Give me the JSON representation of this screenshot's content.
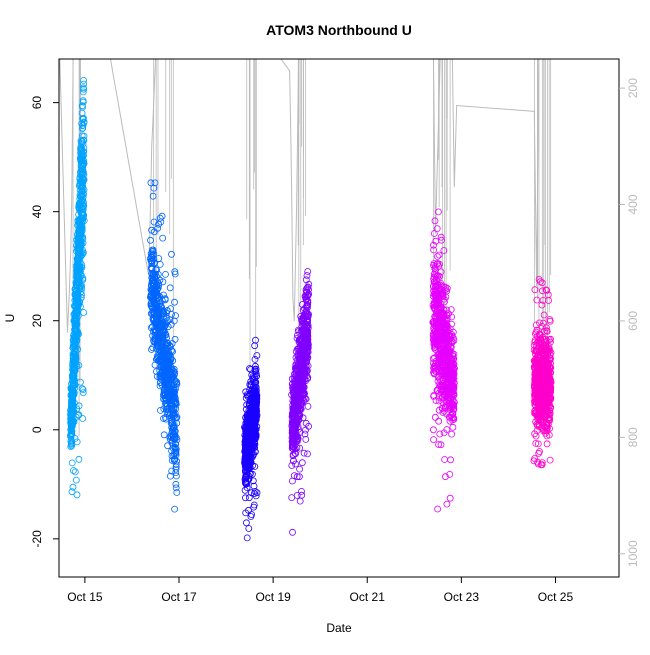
{
  "chart_data": {
    "type": "scatter",
    "title": "ATOM3 Northbound U",
    "xlabel": "Date",
    "ylabel": "U",
    "x_unit": "days since Oct 14",
    "xlim": [
      0.45,
      12.35
    ],
    "ylim": [
      -27,
      68
    ],
    "y_ticks": [
      -20,
      0,
      20,
      40,
      60
    ],
    "x_ticks": [
      {
        "value": 1,
        "label": "Oct 15"
      },
      {
        "value": 3,
        "label": "Oct 17"
      },
      {
        "value": 5,
        "label": "Oct 19"
      },
      {
        "value": 7,
        "label": "Oct 21"
      },
      {
        "value": 9,
        "label": "Oct 23"
      },
      {
        "value": 11,
        "label": "Oct 25"
      }
    ],
    "secondary_axis": {
      "label": "",
      "side": "right",
      "range_top": 150,
      "range_bottom": 1040,
      "ticks": [
        200,
        400,
        600,
        800,
        1000
      ],
      "color": "#bbbbbb"
    },
    "grid": false,
    "marker": "open-circle",
    "series": [
      {
        "color": "#00a2ff",
        "x": [
          0.7,
          0.98
        ],
        "y_center": [
          0,
          52
        ],
        "y_min": [
          -15,
          -10
        ],
        "y_max": [
          6,
          65
        ]
      },
      {
        "color": "#0066ff",
        "x": [
          2.4,
          2.95
        ],
        "y_center": [
          28,
          0
        ],
        "y_min": [
          12,
          -19
        ],
        "y_max": [
          49,
          29
        ]
      },
      {
        "color": "#1a00ff",
        "x": [
          4.4,
          4.65
        ],
        "y_center": [
          -5,
          5
        ],
        "y_min": [
          -23,
          -12
        ],
        "y_max": [
          7,
          18
        ]
      },
      {
        "color": "#8000ff",
        "x": [
          5.4,
          5.75
        ],
        "y_center": [
          0,
          20
        ],
        "y_min": [
          -20,
          -10
        ],
        "y_max": [
          9,
          35
        ]
      },
      {
        "color": "#e600ff",
        "x": [
          8.4,
          8.85
        ],
        "y_center": [
          22,
          8
        ],
        "y_min": [
          -21,
          -12
        ],
        "y_max": [
          49,
          18
        ]
      },
      {
        "color": "#ff00cc",
        "x": [
          10.55,
          10.9
        ],
        "y_center": [
          9,
          8
        ],
        "y_min": [
          -7,
          -7
        ],
        "y_max": [
          30,
          25
        ]
      }
    ],
    "secondary_line": {
      "color": "#bbbbbb",
      "points": [
        [
          0.45,
          100
        ],
        [
          0.63,
          620
        ],
        [
          0.67,
          550
        ],
        [
          0.7,
          480
        ],
        [
          0.72,
          400
        ],
        [
          0.75,
          150
        ],
        [
          0.78,
          100
        ],
        [
          1.5,
          130
        ],
        [
          2.35,
          520
        ],
        [
          2.38,
          450
        ],
        [
          2.4,
          380
        ],
        [
          2.42,
          300
        ],
        [
          2.45,
          250
        ],
        [
          2.5,
          150
        ],
        [
          2.55,
          100
        ],
        [
          4.8,
          110
        ],
        [
          5.35,
          170
        ],
        [
          5.38,
          300
        ],
        [
          5.4,
          420
        ],
        [
          5.42,
          560
        ],
        [
          5.45,
          600
        ],
        [
          5.5,
          400
        ],
        [
          5.55,
          100
        ],
        [
          8.4,
          100
        ],
        [
          8.45,
          450
        ],
        [
          8.55,
          150
        ],
        [
          8.7,
          100
        ],
        [
          8.8,
          100
        ],
        [
          8.85,
          370
        ],
        [
          8.9,
          230
        ],
        [
          10.55,
          240
        ],
        [
          10.6,
          540
        ],
        [
          10.65,
          100
        ]
      ]
    }
  }
}
